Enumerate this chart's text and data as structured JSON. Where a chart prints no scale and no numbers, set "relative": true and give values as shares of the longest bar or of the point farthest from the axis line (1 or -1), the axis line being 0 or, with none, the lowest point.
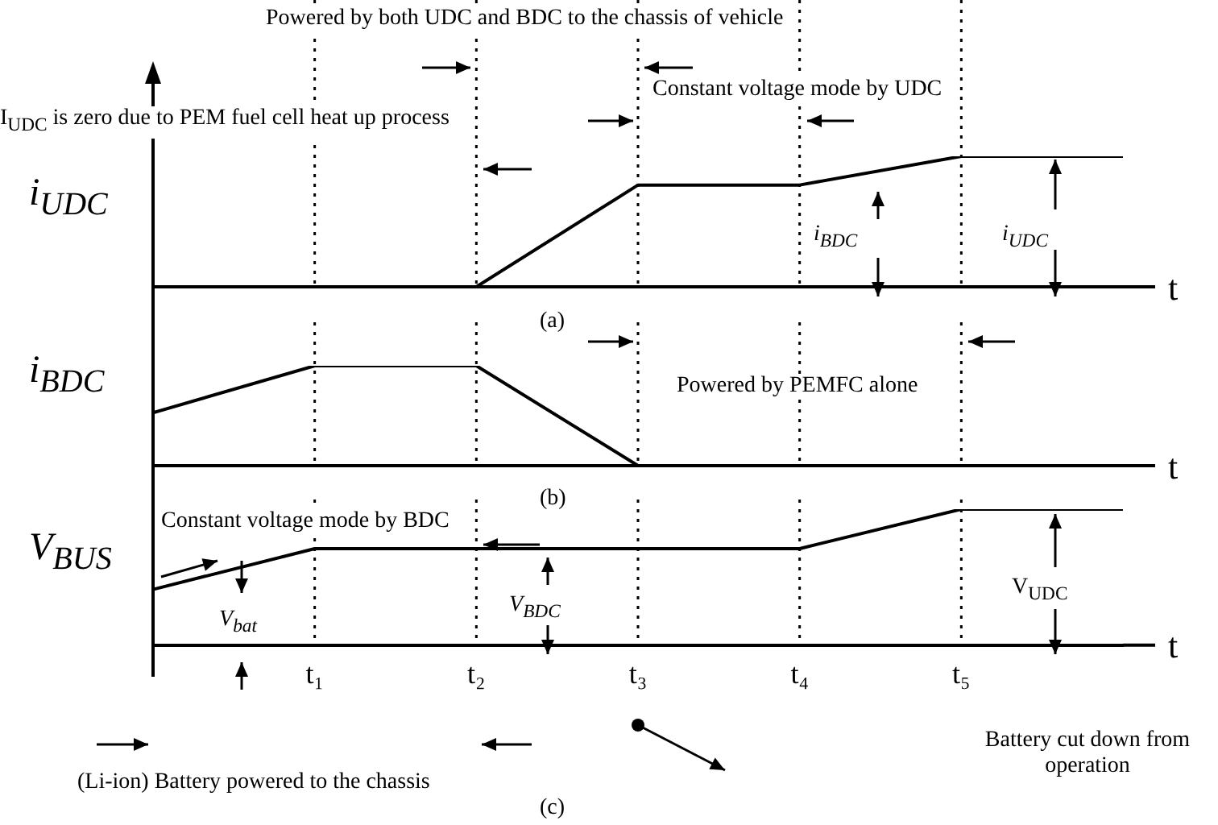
{
  "chart_data": [
    {
      "type": "line",
      "relative": true,
      "categories": [
        null,
        null,
        null,
        null,
        null,
        null,
        null
      ],
      "tick_labels": false,
      "ylabel": "i$_{UDC}$",
      "xlabel": "t",
      "grid": "x",
      "series": [
        {
          "color": "#000000",
          "values": [
            0,
            0,
            0,
            0.78,
            0.78,
            1,
            1
          ]
        }
      ],
      "annotations": [
        "Powered by both UDC and BDC to the chassis of vehicle",
        "I$_{UDC}$ is zero due to PEM fuel cell heat up process",
        "Constant voltage mode by UDC",
        "i$_{BDC}$",
        "i$_{UDC}$",
        "(a)"
      ]
    },
    {
      "type": "line",
      "relative": true,
      "categories": [
        null,
        null,
        null,
        null,
        null,
        null,
        null
      ],
      "tick_labels": false,
      "ylabel": "i$_{BDC}$",
      "xlabel": "t",
      "grid": "x",
      "series": [
        {
          "color": "#000000",
          "values": [
            0.53,
            1,
            1,
            0,
            0,
            0,
            0
          ]
        }
      ],
      "annotations": [
        "Powered by PEMFC alone",
        "(b)"
      ]
    },
    {
      "type": "line",
      "relative": true,
      "categories": [
        null,
        "t₁",
        "t₂",
        "t₃",
        "t₄",
        "t₅",
        null
      ],
      "tick_labels": "x",
      "ylabel": "V$_{BUS}$",
      "xlabel": "t",
      "grid": "x",
      "series": [
        {
          "color": "#000000",
          "values": [
            0.41,
            0.71,
            0.71,
            0.71,
            0.71,
            1,
            1
          ]
        }
      ],
      "annotations": [
        "Constant voltage mode by BDC",
        "V$_{bat}$",
        "V$_{BDC}$",
        "V$_{UDC}$",
        "(Li-ion) Battery powered to the chassis",
        "Battery cut down from operation",
        "(c)"
      ]
    }
  ]
}
